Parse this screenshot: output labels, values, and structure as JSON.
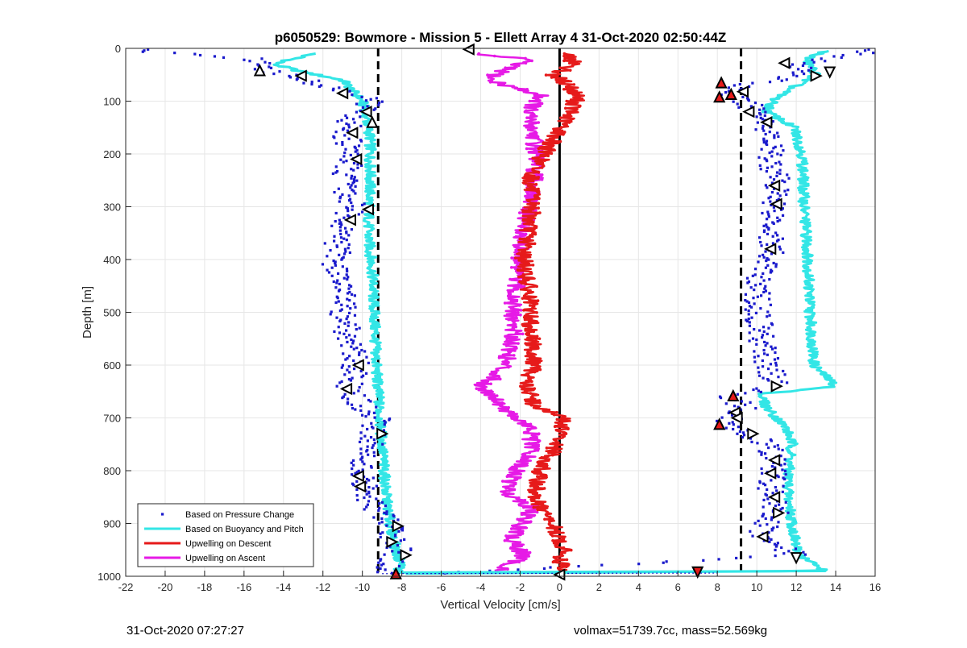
{
  "chart_data": {
    "type": "scatter",
    "title": "p6050529: Bowmore - Mission 5 - Ellett Array 4 31-Oct-2020 02:50:44Z",
    "xlabel": "Vertical Velocity [cm/s]",
    "ylabel": "Depth [m]",
    "xlim": [
      -22,
      16
    ],
    "ylim": [
      1000,
      0
    ],
    "y_reversed": true,
    "grid": true,
    "x_ticks": [
      -22,
      -20,
      -18,
      -16,
      -14,
      -12,
      -10,
      -8,
      -6,
      -4,
      -2,
      0,
      2,
      4,
      6,
      8,
      10,
      12,
      14,
      16
    ],
    "y_ticks": [
      0,
      100,
      200,
      300,
      400,
      500,
      600,
      700,
      800,
      900,
      1000
    ],
    "legend": {
      "location": "bottom-left",
      "entries": [
        {
          "label": "Based on Pressure Change",
          "style": "dot",
          "color": "#1a1acc"
        },
        {
          "label": "Based on Buoyancy and Pitch",
          "style": "line",
          "color": "#33e6e6"
        },
        {
          "label": "Upwelling on Descent",
          "style": "line",
          "color": "#e61a1a"
        },
        {
          "label": "Upwelling on Ascent",
          "style": "line",
          "color": "#e61ae6"
        }
      ]
    },
    "reference_lines": [
      {
        "x": 0,
        "style": "solid",
        "color": "#000000"
      },
      {
        "x": -9.2,
        "style": "dashed",
        "color": "#000000"
      },
      {
        "x": 9.2,
        "style": "dashed",
        "color": "#000000"
      }
    ],
    "series": [
      {
        "name": "Based on Buoyancy and Pitch",
        "color": "#33e6e6",
        "profiles": [
          {
            "leg": "descent",
            "depth": [
              10,
              30,
              45,
              60,
              80,
              100,
              130,
              170,
              250,
              350,
              420,
              500,
              600,
              650,
              700,
              750,
              800,
              850,
              900,
              950,
              980,
              995
            ],
            "velocity": [
              -12.5,
              -14.5,
              -13,
              -11,
              -10.5,
              -10,
              -9.8,
              -9.6,
              -9.6,
              -9.7,
              -9.5,
              -9.4,
              -9.3,
              -9.2,
              -9.1,
              -9.0,
              -8.9,
              -8.8,
              -8.6,
              -8.3,
              -8.0,
              -8.3
            ]
          },
          {
            "leg": "ascent",
            "depth": [
              995,
              990,
              980,
              960,
              950,
              900,
              850,
              800,
              750,
              720,
              700,
              680,
              655,
              640,
              600,
              500,
              400,
              300,
              200,
              150,
              120,
              100,
              80,
              50,
              20,
              5
            ],
            "velocity": [
              -8.0,
              13.5,
              13.0,
              12.2,
              12.0,
              11.8,
              11.6,
              11.6,
              11.8,
              11.5,
              11.0,
              10.5,
              10.2,
              14.0,
              12.9,
              12.7,
              12.6,
              12.4,
              12.3,
              11.9,
              10.5,
              10.8,
              11.5,
              13.0,
              12.5,
              13.5
            ]
          }
        ]
      },
      {
        "name": "Based on Pressure Change",
        "color": "#1a1acc",
        "profiles": [
          {
            "leg": "descent",
            "depth": [
              5,
              20,
              40,
              60,
              80,
              100,
              130,
              160,
              200,
              250,
              300,
              350,
              400,
              450,
              500,
              550,
              600,
              650,
              700,
              750,
              800,
              850,
              900,
              950,
              990
            ],
            "velocity": [
              -21,
              -15.5,
              -15,
              -13,
              -11,
              -9.5,
              -10.5,
              -10.8,
              -10.6,
              -10.9,
              -10.5,
              -11.1,
              -11.4,
              -11,
              -11,
              -10.7,
              -10.3,
              -10.8,
              -9.3,
              -9.5,
              -10.2,
              -9.8,
              -8.6,
              -8.2,
              -8.8
            ]
          },
          {
            "leg": "ascent",
            "depth": [
              995,
              960,
              920,
              880,
              850,
              810,
              780,
              750,
              735,
              715,
              700,
              680,
              660,
              640,
              600,
              550,
              500,
              450,
              400,
              350,
              300,
              250,
              200,
              150,
              130,
              110,
              90,
              70,
              50,
              30,
              10
            ],
            "velocity": [
              -6.0,
              12.0,
              10.2,
              11.0,
              10.7,
              10.8,
              10.9,
              10.5,
              9.7,
              8.3,
              8.9,
              9.3,
              8.8,
              10.9,
              10.6,
              10.2,
              10.1,
              10.0,
              10.6,
              10.8,
              11.0,
              11.0,
              10.7,
              10.6,
              10.5,
              9.7,
              8.7,
              9.2,
              12.5,
              12.0,
              15.5
            ]
          }
        ]
      },
      {
        "name": "Upwelling on Descent",
        "color": "#e61a1a",
        "profiles": [
          {
            "leg": "descent",
            "depth": [
              10,
              30,
              50,
              70,
              90,
              110,
              150,
              200,
              250,
              300,
              350,
              400,
              450,
              500,
              550,
              600,
              640,
              680,
              700,
              720,
              760,
              800,
              850,
              900,
              950,
              990
            ],
            "velocity": [
              0.3,
              0.8,
              -0.3,
              0.5,
              0.9,
              0.7,
              0.1,
              -0.8,
              -1.5,
              -1.4,
              -1.6,
              -1.8,
              -1.6,
              -1.5,
              -1.4,
              -1.3,
              -1.7,
              -1.2,
              0.2,
              0.1,
              -0.3,
              -1.0,
              -1.3,
              -0.4,
              0.2,
              0.0
            ]
          }
        ]
      },
      {
        "name": "Upwelling on Ascent",
        "color": "#e61ae6",
        "profiles": [
          {
            "leg": "ascent",
            "depth": [
              990,
              960,
              930,
              900,
              870,
              840,
              800,
              760,
              720,
              690,
              660,
              640,
              620,
              600,
              550,
              500,
              450,
              400,
              350,
              300,
              250,
              200,
              160,
              120,
              90,
              60,
              40,
              20,
              10
            ],
            "velocity": [
              -3.0,
              -1.8,
              -2.5,
              -1.9,
              -1.4,
              -2.7,
              -2.2,
              -1.4,
              -1.5,
              -2.6,
              -3.3,
              -4.0,
              -3.2,
              -2.8,
              -2.3,
              -2.4,
              -2.2,
              -2.1,
              -1.9,
              -1.6,
              -1.3,
              -1.2,
              -1.3,
              -1.6,
              -0.9,
              -3.6,
              -2.8,
              -1.6,
              -4.5
            ]
          }
        ]
      }
    ],
    "markers": [
      {
        "type": "triangle-left",
        "color": "#ffffff",
        "x": -4.6,
        "y": 2
      },
      {
        "type": "triangle-up",
        "color": "#ffffff",
        "x": -15.2,
        "y": 42
      },
      {
        "type": "triangle-left",
        "color": "#ffffff",
        "x": -13.1,
        "y": 52
      },
      {
        "type": "triangle-left",
        "color": "#ffffff",
        "x": -11.0,
        "y": 85
      },
      {
        "type": "triangle-left",
        "color": "#ffffff",
        "x": -9.8,
        "y": 120
      },
      {
        "type": "triangle-up",
        "color": "#ffffff",
        "x": -9.5,
        "y": 140
      },
      {
        "type": "triangle-left",
        "color": "#ffffff",
        "x": -10.5,
        "y": 160
      },
      {
        "type": "triangle-left",
        "color": "#ffffff",
        "x": -10.3,
        "y": 210
      },
      {
        "type": "triangle-left",
        "color": "#ffffff",
        "x": -9.7,
        "y": 305
      },
      {
        "type": "triangle-left",
        "color": "#ffffff",
        "x": -10.6,
        "y": 325
      },
      {
        "type": "triangle-left",
        "color": "#ffffff",
        "x": -10.2,
        "y": 600
      },
      {
        "type": "triangle-left",
        "color": "#ffffff",
        "x": -10.8,
        "y": 645
      },
      {
        "type": "triangle-right",
        "color": "#ffffff",
        "x": -9.0,
        "y": 730
      },
      {
        "type": "triangle-left",
        "color": "#ffffff",
        "x": -10.2,
        "y": 810
      },
      {
        "type": "triangle-left",
        "color": "#ffffff",
        "x": -10.1,
        "y": 830
      },
      {
        "type": "triangle-right",
        "color": "#ffffff",
        "x": -8.2,
        "y": 905
      },
      {
        "type": "triangle-right",
        "color": "#ffffff",
        "x": -8.5,
        "y": 935
      },
      {
        "type": "triangle-right",
        "color": "#ffffff",
        "x": -7.8,
        "y": 960
      },
      {
        "type": "triangle-up",
        "color": "#e61a1a",
        "x": -8.3,
        "y": 995
      },
      {
        "type": "triangle-left",
        "color": "#ffffff",
        "x": 0.0,
        "y": 997
      },
      {
        "type": "triangle-down",
        "color": "#e61a1a",
        "x": 7.0,
        "y": 992
      },
      {
        "type": "triangle-left",
        "color": "#ffffff",
        "x": 11.4,
        "y": 28
      },
      {
        "type": "triangle-right",
        "color": "#ffffff",
        "x": 13.0,
        "y": 52
      },
      {
        "type": "triangle-down",
        "color": "#ffffff",
        "x": 13.7,
        "y": 45
      },
      {
        "type": "triangle-up",
        "color": "#e61a1a",
        "x": 8.2,
        "y": 65
      },
      {
        "type": "triangle-up",
        "color": "#e61a1a",
        "x": 8.7,
        "y": 87
      },
      {
        "type": "triangle-up",
        "color": "#e61a1a",
        "x": 8.1,
        "y": 92
      },
      {
        "type": "triangle-left",
        "color": "#ffffff",
        "x": 9.3,
        "y": 82
      },
      {
        "type": "triangle-left",
        "color": "#ffffff",
        "x": 9.6,
        "y": 120
      },
      {
        "type": "triangle-left",
        "color": "#ffffff",
        "x": 10.5,
        "y": 140
      },
      {
        "type": "triangle-left",
        "color": "#ffffff",
        "x": 10.9,
        "y": 260
      },
      {
        "type": "triangle-left",
        "color": "#ffffff",
        "x": 11.0,
        "y": 295
      },
      {
        "type": "triangle-left",
        "color": "#ffffff",
        "x": 10.7,
        "y": 380
      },
      {
        "type": "triangle-right",
        "color": "#ffffff",
        "x": 11.0,
        "y": 640
      },
      {
        "type": "triangle-up",
        "color": "#e61a1a",
        "x": 8.8,
        "y": 658
      },
      {
        "type": "triangle-left",
        "color": "#ffffff",
        "x": 8.9,
        "y": 690
      },
      {
        "type": "triangle-left",
        "color": "#ffffff",
        "x": 9.0,
        "y": 700
      },
      {
        "type": "triangle-up",
        "color": "#e61a1a",
        "x": 8.1,
        "y": 712
      },
      {
        "type": "triangle-right",
        "color": "#ffffff",
        "x": 9.8,
        "y": 730
      },
      {
        "type": "triangle-left",
        "color": "#ffffff",
        "x": 10.9,
        "y": 780
      },
      {
        "type": "triangle-left",
        "color": "#ffffff",
        "x": 10.7,
        "y": 805
      },
      {
        "type": "triangle-left",
        "color": "#ffffff",
        "x": 10.9,
        "y": 850
      },
      {
        "type": "triangle-right",
        "color": "#ffffff",
        "x": 11.1,
        "y": 880
      },
      {
        "type": "triangle-left",
        "color": "#ffffff",
        "x": 10.3,
        "y": 925
      },
      {
        "type": "triangle-down",
        "color": "#ffffff",
        "x": 12.0,
        "y": 965
      }
    ],
    "annotations": {
      "timestamp": "31-Oct-2020 07:27:27",
      "mass_info": "volmax=51739.7cc, mass=52.569kg"
    }
  }
}
